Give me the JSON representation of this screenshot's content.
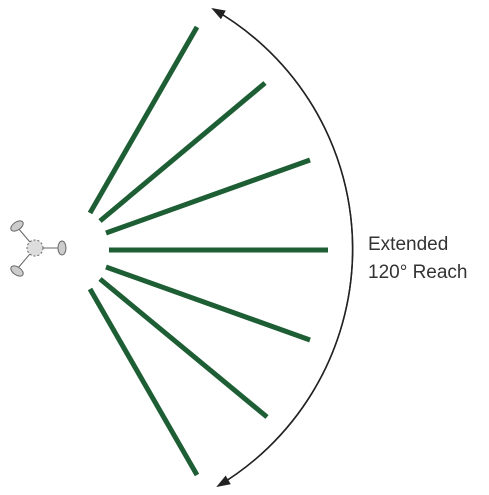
{
  "label": {
    "lines": [
      "Extended",
      "120° Reach"
    ]
  }
}
